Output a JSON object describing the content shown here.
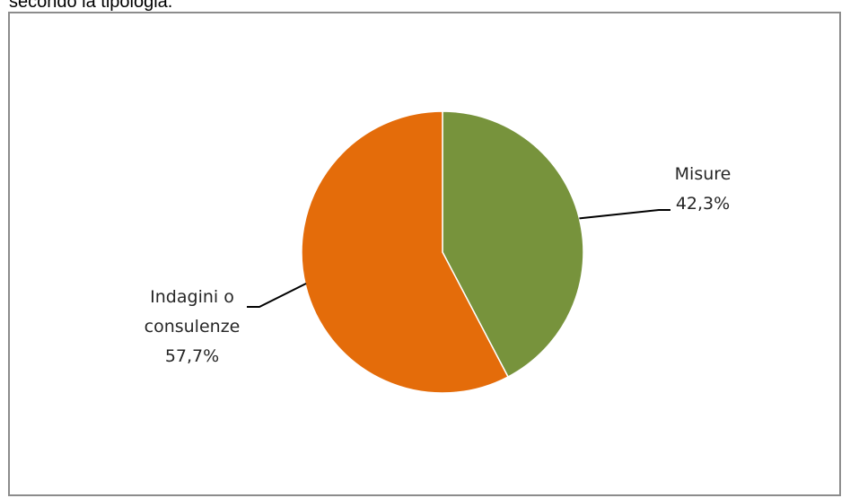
{
  "caption": "secondo la tipologia.",
  "chart_data": {
    "type": "pie",
    "categories": [
      "Misure",
      "Indagini o consulenze"
    ],
    "values": [
      42.3,
      57.7
    ],
    "value_labels": [
      "42,3%",
      "57,7%"
    ],
    "label_lines": [
      [
        "Misure",
        "42,3%"
      ],
      [
        "Indagini o",
        "consulenze",
        "57,7%"
      ]
    ],
    "colors": [
      "#77933c",
      "#e46c0a"
    ],
    "start_angle_deg": 0,
    "direction": "clockwise",
    "legend": "none"
  }
}
